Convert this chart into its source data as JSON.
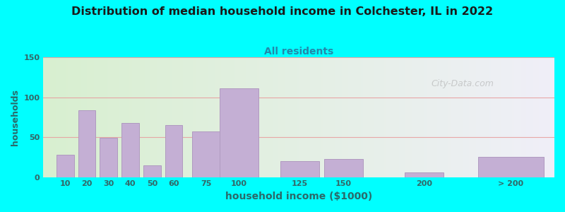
{
  "title": "Distribution of median household income in Colchester, IL in 2022",
  "subtitle": "All residents",
  "xlabel": "household income ($1000)",
  "ylabel": "households",
  "background_color": "#00ffff",
  "bar_color": "#c4afd4",
  "bar_edgecolor": "#b09ac0",
  "title_color": "#1a1a1a",
  "subtitle_color": "#2288aa",
  "axis_label_color": "#2a6a6a",
  "tick_label_color": "#336666",
  "watermark": "City-Data.com",
  "ylim": [
    0,
    150
  ],
  "yticks": [
    0,
    50,
    100,
    150
  ],
  "grid_color": "#e8a0a0",
  "bar_labels": [
    "10",
    "20",
    "30",
    "40",
    "50",
    "60",
    "75",
    "100",
    "125",
    "150",
    "200",
    "> 200"
  ],
  "bar_heights": [
    28,
    84,
    49,
    68,
    15,
    65,
    57,
    111,
    20,
    23,
    6,
    25
  ],
  "bar_positions": [
    10,
    20,
    30,
    40,
    50,
    60,
    75,
    90,
    118,
    138,
    175,
    215
  ],
  "bar_widths": [
    8,
    8,
    8,
    8,
    8,
    8,
    13,
    18,
    18,
    18,
    18,
    30
  ],
  "xlim": [
    0,
    235
  ]
}
